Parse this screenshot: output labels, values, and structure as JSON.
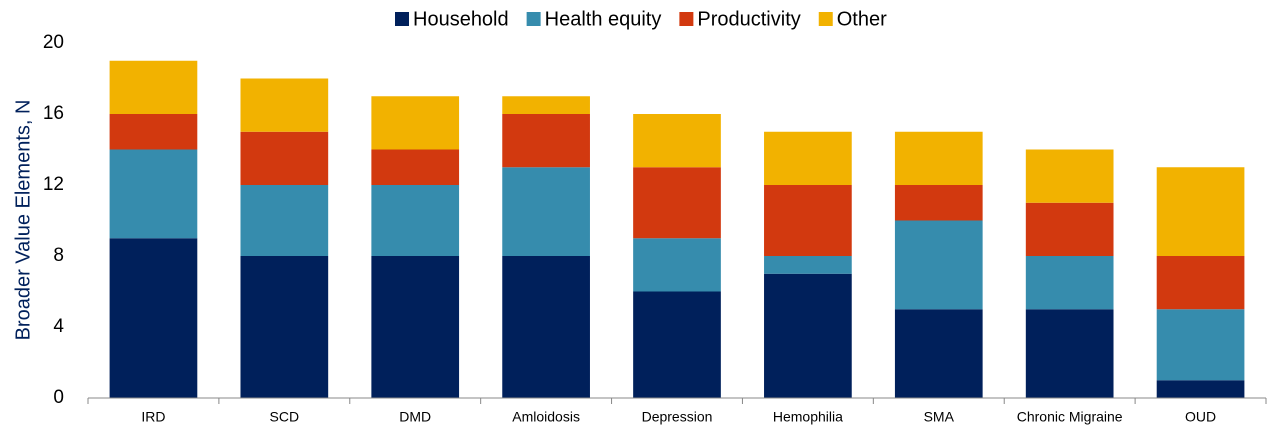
{
  "chart_data": {
    "type": "stacked_bar",
    "y_label": "Broader Value Elements, N",
    "categories": [
      "IRD",
      "SCD",
      "DMD",
      "Amloidosis",
      "Depression",
      "Hemophilia",
      "SMA",
      "Chronic Migraine",
      "OUD"
    ],
    "series": [
      {
        "name": "Household",
        "color": "#00205b",
        "values": [
          9,
          8,
          8,
          8,
          6,
          7,
          5,
          5,
          1
        ]
      },
      {
        "name": "Health equity",
        "color": "#368cad",
        "values": [
          5,
          4,
          4,
          5,
          3,
          1,
          5,
          3,
          4
        ]
      },
      {
        "name": "Productivity",
        "color": "#d2390f",
        "values": [
          2,
          3,
          2,
          3,
          4,
          4,
          2,
          3,
          3
        ]
      },
      {
        "name": "Other",
        "color": "#f2b200",
        "values": [
          3,
          3,
          3,
          1,
          3,
          3,
          3,
          3,
          5
        ]
      }
    ],
    "ylim": [
      0,
      20
    ],
    "yticks": [
      0,
      4,
      8,
      12,
      16,
      20
    ],
    "grid": false,
    "legend": "top"
  }
}
